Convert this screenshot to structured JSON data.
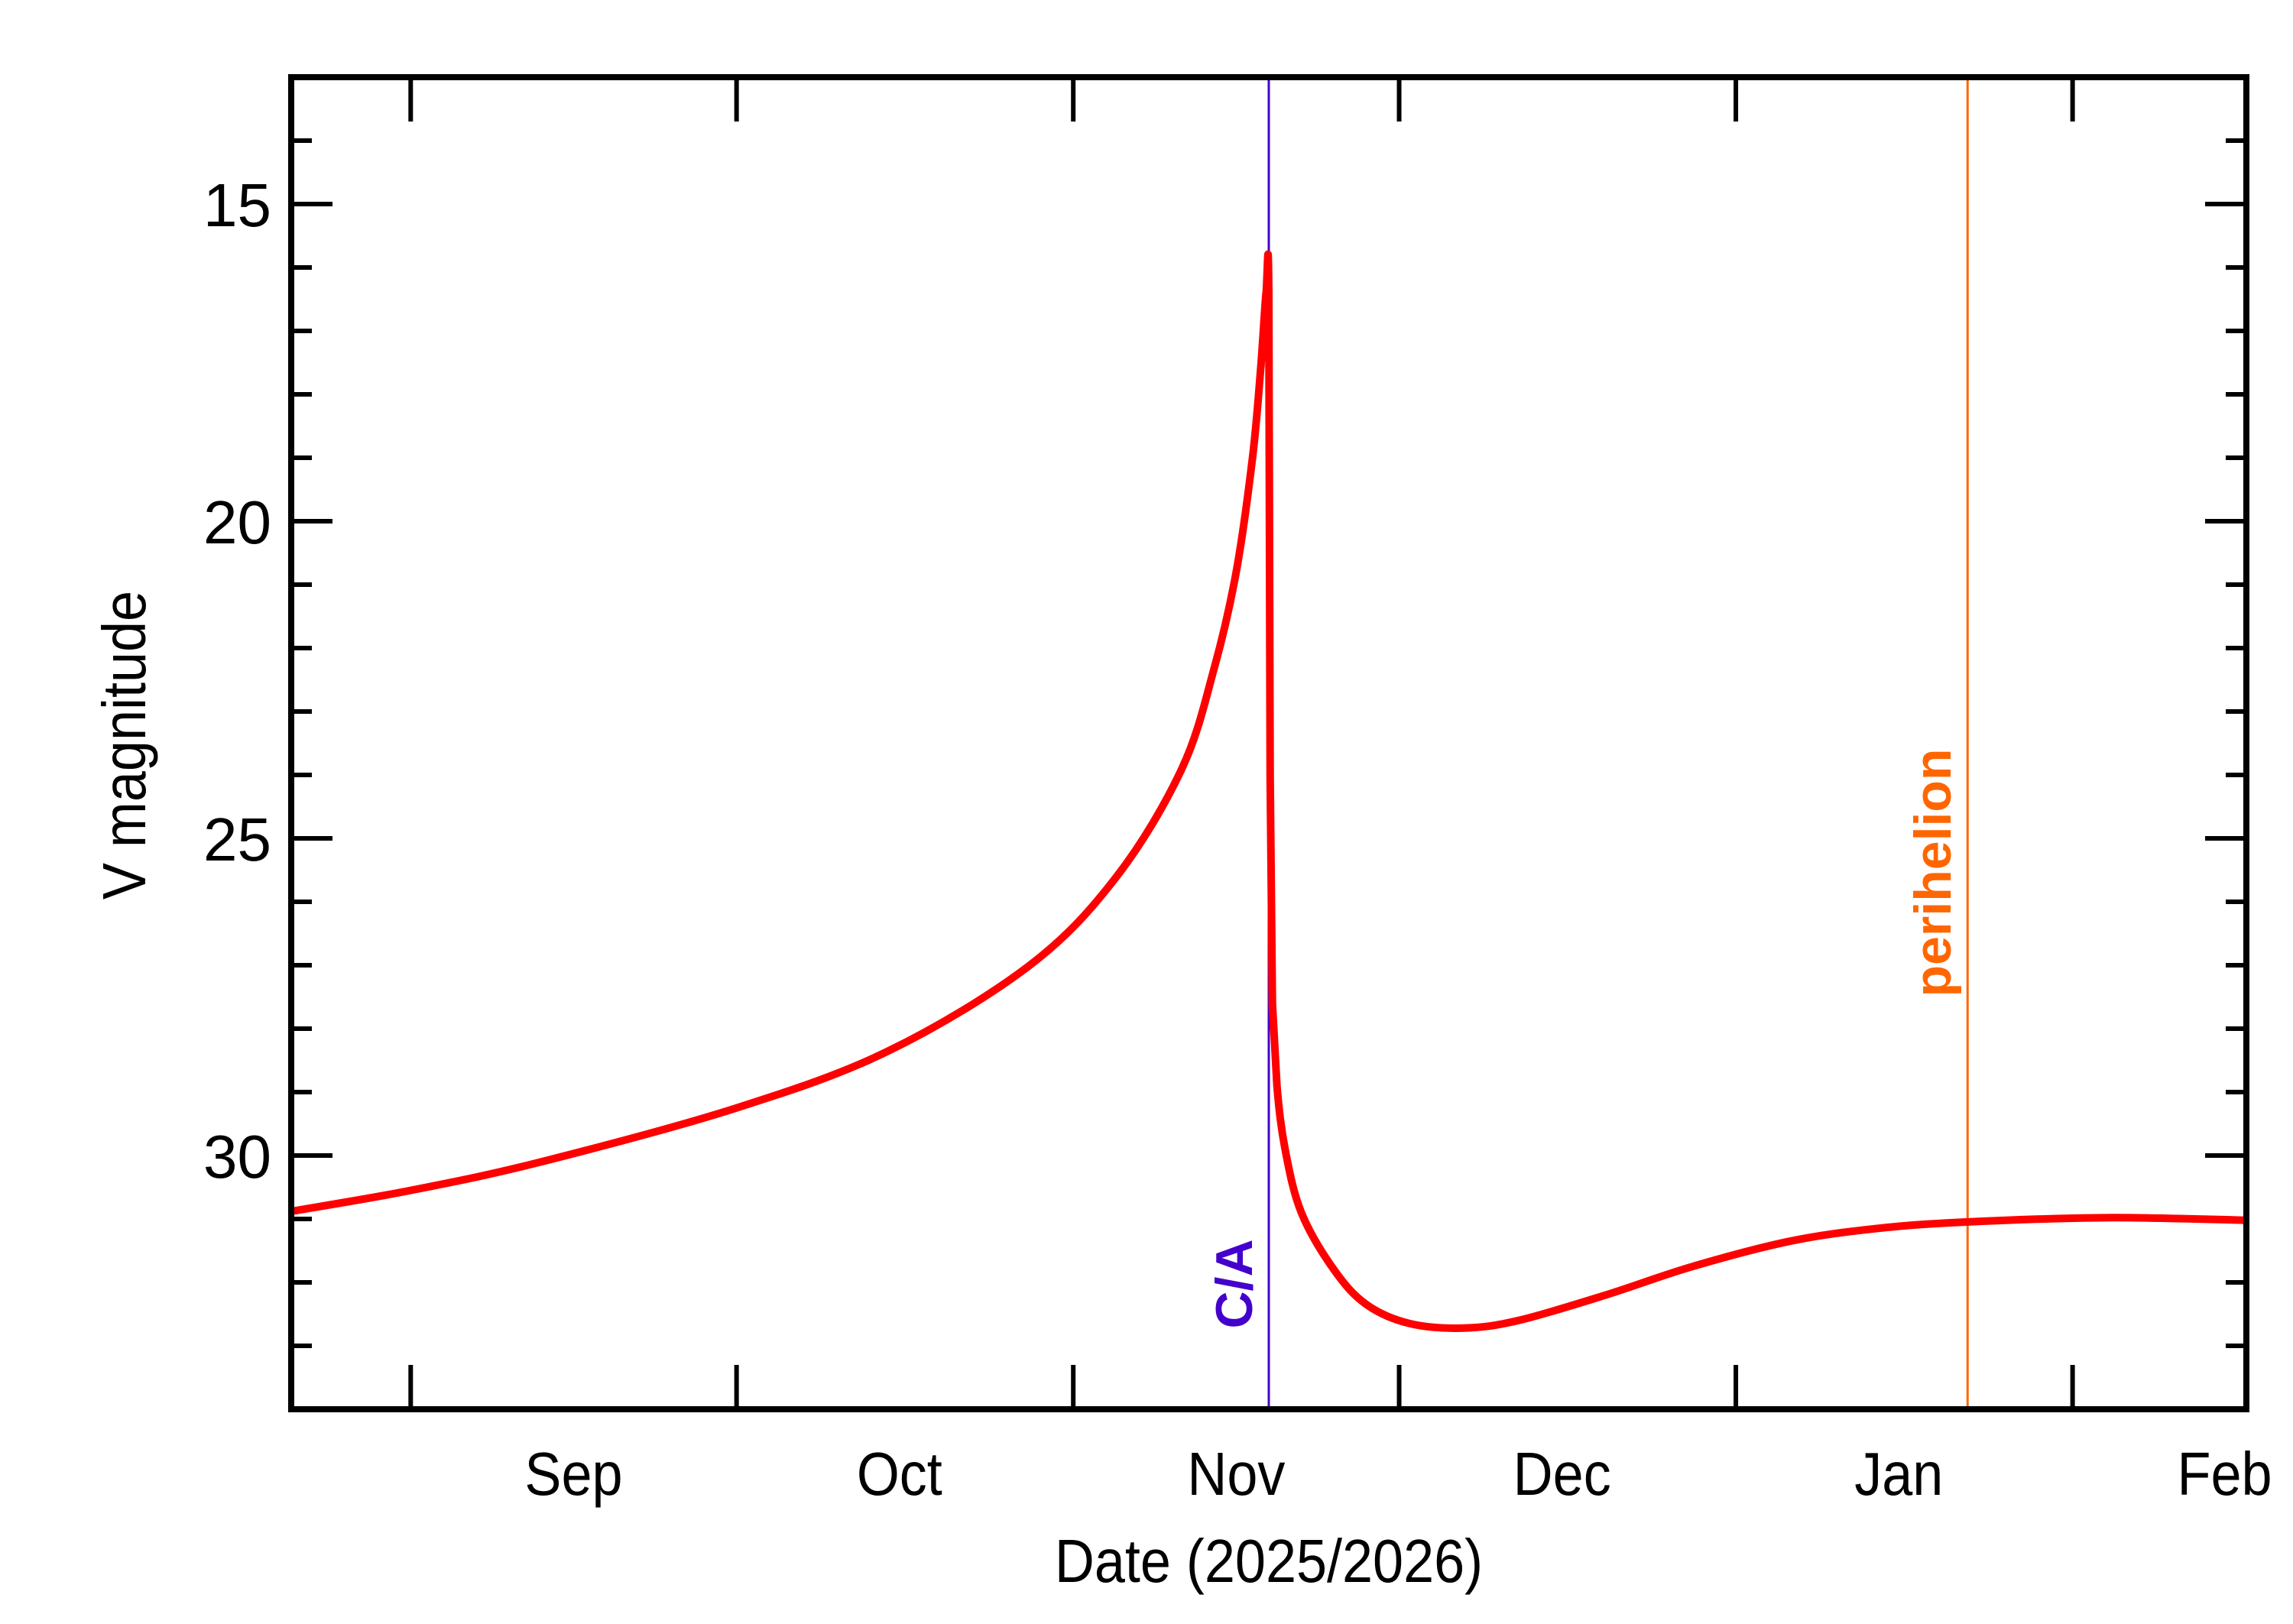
{
  "chart_data": {
    "type": "line",
    "title": "",
    "xlabel": "Date (2025/2026)",
    "ylabel": "V magnitude",
    "xlim": [
      "2025-08-21T00:00",
      "2026-02-17T00:00"
    ],
    "ylim": [
      34,
      13
    ],
    "y_inverted": true,
    "grid": false,
    "y_major_ticks": [
      15,
      20,
      25,
      30
    ],
    "y_tick_labels": [
      "15",
      "20",
      "25",
      "30"
    ],
    "y_minor_step": 1,
    "x_month_boundaries": [
      "2025-09-01",
      "2025-10-01",
      "2025-11-01",
      "2025-12-01",
      "2026-01-01",
      "2026-02-01"
    ],
    "x_tick_labels": [
      {
        "label": "Sep",
        "at": "2025-09-16"
      },
      {
        "label": "Oct",
        "at": "2025-10-16"
      },
      {
        "label": "Nov",
        "at": "2025-11-16"
      },
      {
        "label": "Dec",
        "at": "2025-12-16"
      },
      {
        "label": "Jan",
        "at": "2026-01-16"
      },
      {
        "label": "Feb",
        "at": "2026-02-15"
      }
    ],
    "series": [
      {
        "color": "#ff0000",
        "points": [
          [
            "2025-08-21T00:00",
            30.88
          ],
          [
            "2025-09-01T00:00",
            30.55
          ],
          [
            "2025-09-13T00:00",
            30.1
          ],
          [
            "2025-10-01T00:00",
            29.25
          ],
          [
            "2025-10-15T00:00",
            28.35
          ],
          [
            "2025-10-28T00:00",
            27.0
          ],
          [
            "2025-11-05T00:00",
            25.6
          ],
          [
            "2025-11-11T00:00",
            23.9
          ],
          [
            "2025-11-14T00:00",
            22.3
          ],
          [
            "2025-11-16T00:00",
            20.8
          ],
          [
            "2025-11-17T12:00",
            19.0
          ],
          [
            "2025-11-18T06:00",
            17.6
          ],
          [
            "2025-11-18T18:00",
            16.4
          ],
          [
            "2025-11-19T00:00",
            16.4
          ],
          [
            "2025-11-19T03:00",
            24.0
          ],
          [
            "2025-11-19T08:00",
            27.6
          ],
          [
            "2025-11-19T18:00",
            28.9
          ],
          [
            "2025-11-20T12:00",
            29.9
          ],
          [
            "2025-11-22T00:00",
            30.9
          ],
          [
            "2025-11-25T00:00",
            31.8
          ],
          [
            "2025-11-28T00:00",
            32.35
          ],
          [
            "2025-12-02T00:00",
            32.65
          ],
          [
            "2025-12-07T00:00",
            32.72
          ],
          [
            "2025-12-12T00:00",
            32.6
          ],
          [
            "2025-12-20T00:00",
            32.2
          ],
          [
            "2025-12-28T00:00",
            31.75
          ],
          [
            "2026-01-06T00:00",
            31.35
          ],
          [
            "2026-01-14T00:00",
            31.15
          ],
          [
            "2026-01-22T00:00",
            31.05
          ],
          [
            "2026-02-04T00:00",
            30.98
          ],
          [
            "2026-02-17T00:00",
            31.02
          ]
        ]
      }
    ],
    "annotations": [
      {
        "label": "C/A",
        "date": "2025-11-19T00:00",
        "color": "#4400cc"
      },
      {
        "label": "perihelion",
        "date": "2026-01-22T08:00",
        "color": "#ff6600"
      }
    ]
  }
}
